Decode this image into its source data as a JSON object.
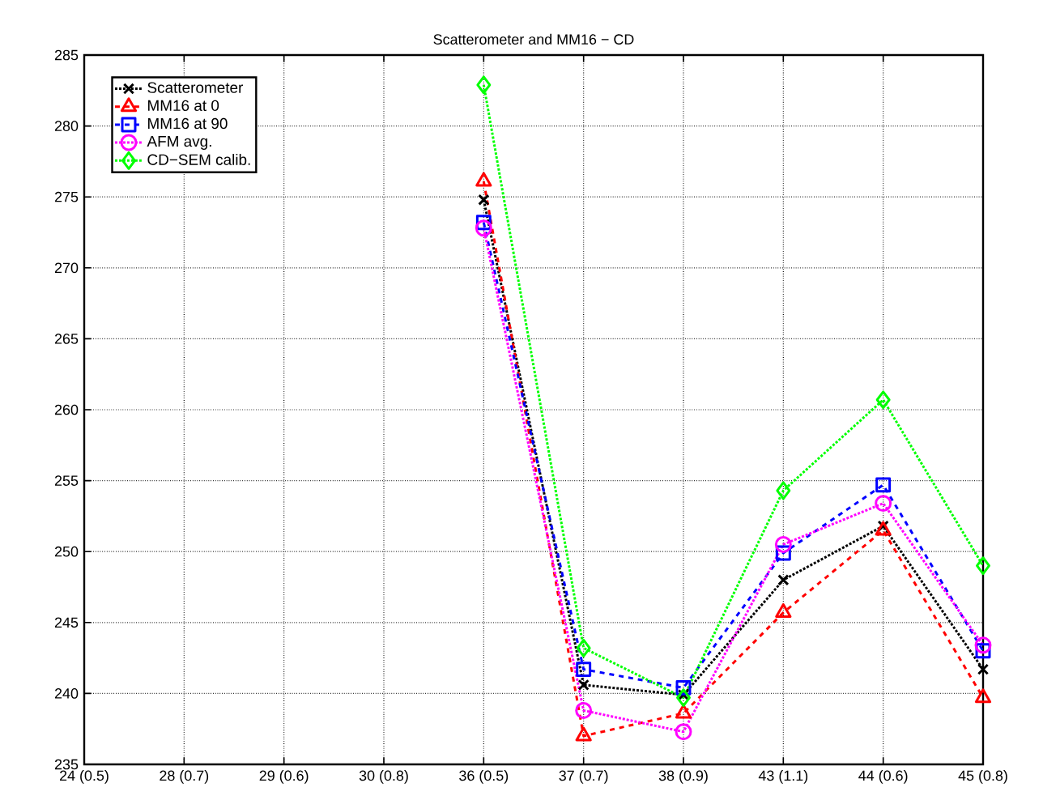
{
  "chart_data": {
    "type": "line",
    "title": "Scatterometer and MM16 − CD",
    "categories": [
      "24 (0.5)",
      "28 (0.7)",
      "29 (0.6)",
      "30 (0.8)",
      "36 (0.5)",
      "37 (0.7)",
      "38 (0.9)",
      "43 (1.1)",
      "44 (0.6)",
      "45 (0.8)"
    ],
    "series": [
      {
        "name": "Scatterometer",
        "color": "#000000",
        "marker": "cross",
        "line_style": "dotted",
        "values": [
          null,
          null,
          null,
          null,
          274.8,
          240.6,
          239.9,
          248.0,
          251.8,
          241.7
        ]
      },
      {
        "name": "MM16 at 0",
        "color": "#ff0000",
        "marker": "triangle",
        "line_style": "dashed",
        "values": [
          null,
          null,
          null,
          null,
          276.1,
          237.0,
          238.6,
          245.7,
          251.5,
          239.7
        ]
      },
      {
        "name": "MM16 at 90",
        "color": "#0000ff",
        "marker": "square",
        "line_style": "dashed",
        "values": [
          null,
          null,
          null,
          null,
          273.2,
          241.7,
          240.4,
          249.9,
          254.7,
          243.0
        ]
      },
      {
        "name": "AFM avg.",
        "color": "#ff00ff",
        "marker": "circle",
        "line_style": "dotted",
        "values": [
          null,
          null,
          null,
          null,
          272.8,
          238.8,
          237.3,
          250.5,
          253.4,
          243.4
        ]
      },
      {
        "name": "CD−SEM calib.",
        "color": "#00ff00",
        "marker": "diamond",
        "line_style": "dotted",
        "values": [
          null,
          null,
          null,
          null,
          282.9,
          243.2,
          239.7,
          254.3,
          260.7,
          249.0
        ]
      }
    ],
    "ylim": [
      235,
      285
    ],
    "yticks": [
      235,
      240,
      245,
      250,
      255,
      260,
      265,
      270,
      275,
      280,
      285
    ],
    "grid": true,
    "legend": "top left"
  }
}
